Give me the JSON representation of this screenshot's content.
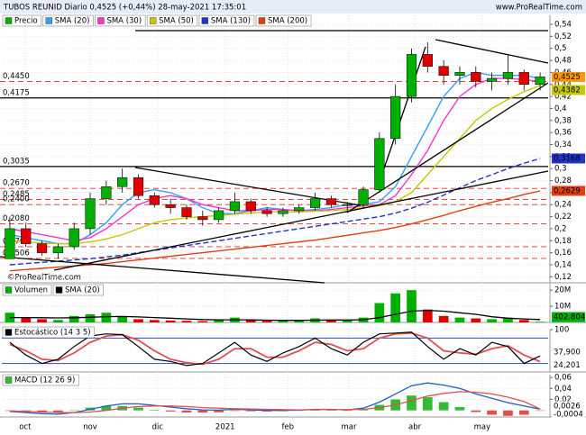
{
  "header": {
    "title": "TUBOS REUNID Diario 0,4525 (+0,44%) 28-may-2021 17:35:01",
    "site": "www.ProRealTime.com",
    "watermark": "©ProRealTime.com"
  },
  "chart_data": [
    {
      "type": "candlestick",
      "title": "Precio",
      "open": [
        0.15,
        0.2,
        0.175,
        0.16,
        0.17,
        0.2,
        0.25,
        0.27,
        0.285,
        0.255,
        0.24,
        0.235,
        0.22,
        0.215,
        0.23,
        0.245,
        0.23,
        0.225,
        0.23,
        0.235,
        0.25,
        0.24,
        0.24,
        0.265,
        0.35,
        0.42,
        0.49,
        0.47,
        0.455,
        0.46,
        0.445,
        0.45,
        0.46,
        0.44
      ],
      "high": [
        0.22,
        0.21,
        0.18,
        0.175,
        0.21,
        0.26,
        0.28,
        0.3,
        0.29,
        0.26,
        0.25,
        0.24,
        0.23,
        0.235,
        0.26,
        0.25,
        0.235,
        0.235,
        0.24,
        0.26,
        0.255,
        0.245,
        0.27,
        0.36,
        0.44,
        0.5,
        0.51,
        0.48,
        0.47,
        0.47,
        0.46,
        0.49,
        0.465,
        0.46
      ],
      "low": [
        0.15,
        0.17,
        0.155,
        0.15,
        0.165,
        0.19,
        0.24,
        0.26,
        0.25,
        0.235,
        0.225,
        0.215,
        0.205,
        0.21,
        0.225,
        0.225,
        0.22,
        0.22,
        0.225,
        0.23,
        0.235,
        0.23,
        0.235,
        0.26,
        0.34,
        0.41,
        0.46,
        0.44,
        0.44,
        0.435,
        0.43,
        0.44,
        0.43,
        0.43
      ],
      "close": [
        0.2,
        0.175,
        0.16,
        0.17,
        0.2,
        0.25,
        0.27,
        0.285,
        0.255,
        0.24,
        0.235,
        0.22,
        0.215,
        0.23,
        0.245,
        0.23,
        0.225,
        0.23,
        0.235,
        0.25,
        0.24,
        0.24,
        0.265,
        0.35,
        0.42,
        0.49,
        0.47,
        0.455,
        0.46,
        0.445,
        0.45,
        0.46,
        0.44,
        0.4525
      ],
      "last_label": "0,4525",
      "up_color": "#00b000",
      "down_color": "#e00000",
      "last_color": "#ff9800",
      "series": [
        {
          "name": "SMA (20)",
          "color": "#33a0ff",
          "values": [
            0.19,
            0.185,
            0.18,
            0.175,
            0.175,
            0.19,
            0.21,
            0.24,
            0.26,
            0.265,
            0.26,
            0.25,
            0.235,
            0.225,
            0.225,
            0.23,
            0.235,
            0.232,
            0.23,
            0.232,
            0.235,
            0.24,
            0.24,
            0.245,
            0.27,
            0.32,
            0.37,
            0.42,
            0.45,
            0.46,
            0.455,
            0.455,
            0.455,
            0.45
          ]
        },
        {
          "name": "SMA (30)",
          "color": "#ff33cc",
          "values": [
            0.2,
            0.195,
            0.19,
            0.185,
            0.18,
            0.185,
            0.2,
            0.22,
            0.24,
            0.25,
            0.255,
            0.25,
            0.24,
            0.235,
            0.23,
            0.23,
            0.232,
            0.232,
            0.23,
            0.23,
            0.232,
            0.235,
            0.238,
            0.24,
            0.255,
            0.29,
            0.33,
            0.38,
            0.42,
            0.44,
            0.45,
            0.45,
            0.448,
            0.445
          ]
        },
        {
          "name": "SMA (50)",
          "color": "#c8c800",
          "last_label": "0,4382",
          "values": [
            0.18,
            0.178,
            0.176,
            0.175,
            0.175,
            0.178,
            0.183,
            0.19,
            0.2,
            0.21,
            0.215,
            0.218,
            0.22,
            0.222,
            0.224,
            0.226,
            0.228,
            0.228,
            0.228,
            0.229,
            0.23,
            0.232,
            0.235,
            0.238,
            0.245,
            0.26,
            0.29,
            0.32,
            0.35,
            0.38,
            0.4,
            0.415,
            0.428,
            0.4382
          ]
        },
        {
          "name": "SMA (130)",
          "color": "#2233cc",
          "dashed": true,
          "last_label": "0,3168",
          "values": [
            0.14,
            0.142,
            0.144,
            0.146,
            0.148,
            0.15,
            0.153,
            0.156,
            0.16,
            0.164,
            0.168,
            0.172,
            0.176,
            0.18,
            0.184,
            0.188,
            0.192,
            0.196,
            0.2,
            0.204,
            0.208,
            0.212,
            0.216,
            0.22,
            0.226,
            0.234,
            0.244,
            0.256,
            0.268,
            0.28,
            0.29,
            0.3,
            0.309,
            0.3168
          ]
        },
        {
          "name": "SMA (200)",
          "color": "#e04010",
          "last_label": "0,2629",
          "values": [
            0.13,
            0.132,
            0.134,
            0.136,
            0.138,
            0.14,
            0.142,
            0.145,
            0.148,
            0.151,
            0.154,
            0.157,
            0.16,
            0.163,
            0.166,
            0.169,
            0.172,
            0.175,
            0.178,
            0.181,
            0.185,
            0.189,
            0.193,
            0.197,
            0.202,
            0.208,
            0.215,
            0.222,
            0.23,
            0.237,
            0.244,
            0.25,
            0.257,
            0.2629
          ]
        }
      ],
      "levels": [
        {
          "value": 0.445,
          "label": "0,4450",
          "style": "dashed"
        },
        {
          "value": 0.4175,
          "label": "0,4175",
          "style": "solid"
        },
        {
          "value": 0.3035,
          "label": "0,3035",
          "style": "solid"
        },
        {
          "value": 0.267,
          "label": "0,2670",
          "style": "dashed"
        },
        {
          "value": 0.2485,
          "label": "0,2485",
          "style": "dashed"
        },
        {
          "value": 0.24,
          "label": "0,2400",
          "style": "dashed"
        },
        {
          "value": 0.208,
          "label": "0,2080",
          "style": "dashed"
        },
        {
          "value": 0.17,
          "label": "0,1700",
          "style": "dashed"
        },
        {
          "value": 0.1506,
          "label": "0,1506",
          "style": "dashed"
        }
      ],
      "ylim": [
        0.11,
        0.555
      ],
      "yticks": [
        {
          "value": 0.12,
          "label": "0,12"
        },
        {
          "value": 0.14,
          "label": "0,14"
        },
        {
          "value": 0.16,
          "label": "0,16"
        },
        {
          "value": 0.18,
          "label": "0,18"
        },
        {
          "value": 0.2,
          "label": "0,2"
        },
        {
          "value": 0.22,
          "label": "0,22"
        },
        {
          "value": 0.24,
          "label": "0,24"
        },
        {
          "value": 0.26,
          "label": "0,26"
        },
        {
          "value": 0.28,
          "label": "0,28"
        },
        {
          "value": 0.3,
          "label": "0,3"
        },
        {
          "value": 0.32,
          "label": "0,32"
        },
        {
          "value": 0.34,
          "label": "0,34"
        },
        {
          "value": 0.36,
          "label": "0,36"
        },
        {
          "value": 0.38,
          "label": "0,38"
        },
        {
          "value": 0.4,
          "label": "0,4"
        },
        {
          "value": 0.42,
          "label": "0,42"
        },
        {
          "value": 0.44,
          "label": "0,44"
        },
        {
          "value": 0.46,
          "label": "0,46"
        },
        {
          "value": 0.48,
          "label": "0,48"
        },
        {
          "value": 0.5,
          "label": "0,5"
        },
        {
          "value": 0.52,
          "label": "0,52"
        },
        {
          "value": 0.54,
          "label": "0,54"
        }
      ],
      "xticks": [
        {
          "value": 0.95,
          "label": "oct"
        },
        {
          "value": 5.0,
          "label": "nov"
        },
        {
          "value": 9.2,
          "label": "dic"
        },
        {
          "value": 13.4,
          "label": "2021"
        },
        {
          "value": 17.3,
          "label": "feb"
        },
        {
          "value": 21.1,
          "label": "mar"
        },
        {
          "value": 25.2,
          "label": "abr"
        },
        {
          "value": 29.4,
          "label": "may"
        }
      ],
      "grid": true
    },
    {
      "type": "bar",
      "title": "Volumen",
      "values": [
        6000000,
        3000000,
        2000000,
        1500000,
        4000000,
        5000000,
        6000000,
        4000000,
        2000000,
        1500000,
        1200000,
        1000000,
        800000,
        1500000,
        3000000,
        1500000,
        1000000,
        1000000,
        1200000,
        2500000,
        1500000,
        1200000,
        3000000,
        12000000,
        18000000,
        20000000,
        8000000,
        4000000,
        3000000,
        2500000,
        2000000,
        3000000,
        1500000,
        402804
      ],
      "last_label": "402.804",
      "last_color": "#00b000",
      "series": [
        {
          "name": "SMA (20)",
          "color": "#000000",
          "values": [
            3000000,
            3000000,
            2900000,
            2800000,
            2900000,
            3200000,
            3600000,
            3700000,
            3400000,
            3000000,
            2600000,
            2200000,
            1800000,
            1600000,
            1600000,
            1600000,
            1400000,
            1300000,
            1300000,
            1400000,
            1500000,
            1500000,
            1700000,
            3000000,
            5000000,
            7000000,
            7500000,
            7000000,
            6000000,
            5000000,
            3500000,
            2600000,
            2200000,
            1800000
          ]
        }
      ],
      "ylim": [
        0,
        24000000
      ],
      "yticks": [
        {
          "value": 10000000,
          "label": "10M"
        },
        {
          "value": 20000000,
          "label": "20M"
        }
      ]
    },
    {
      "type": "line",
      "title": "Estocástico (14 3 5)",
      "series": [
        {
          "name": "%K",
          "color": "#000000",
          "last_label": "37,900",
          "values": [
            70,
            40,
            20,
            30,
            60,
            85,
            90,
            88,
            60,
            30,
            25,
            15,
            20,
            45,
            70,
            40,
            25,
            45,
            60,
            80,
            55,
            40,
            70,
            90,
            92,
            94,
            60,
            30,
            55,
            40,
            70,
            60,
            20,
            37.9
          ]
        },
        {
          "name": "%D",
          "color": "#e05050",
          "last_label": "24,201",
          "values": [
            65,
            50,
            30,
            27,
            45,
            70,
            85,
            88,
            75,
            50,
            30,
            22,
            18,
            30,
            55,
            55,
            35,
            35,
            50,
            70,
            65,
            50,
            55,
            80,
            90,
            92,
            80,
            50,
            45,
            42,
            55,
            62,
            40,
            24.201
          ]
        }
      ],
      "levels": [
        80,
        20
      ],
      "level_color": "#3344cc",
      "ylim": [
        0,
        100
      ],
      "yticks": [
        100
      ]
    },
    {
      "type": "macd",
      "title": "MACD (12 26 9)",
      "series": [
        {
          "name": "MACD",
          "color": "#1f5fbf",
          "values": [
            -0.002,
            -0.004,
            -0.006,
            -0.007,
            -0.004,
            0.002,
            0.008,
            0.012,
            0.012,
            0.009,
            0.006,
            0.003,
            0.001,
            0.0005,
            0.002,
            0.001,
            0,
            0,
            0.0005,
            0.002,
            0.002,
            0.001,
            0.004,
            0.015,
            0.03,
            0.045,
            0.05,
            0.046,
            0.04,
            0.03,
            0.022,
            0.014,
            0.008,
            0.0022
          ]
        },
        {
          "name": "Señal",
          "color": "#e05050",
          "last_label": "0,0026",
          "values": [
            -0.001,
            -0.002,
            -0.003,
            -0.004,
            -0.004,
            -0.003,
            0,
            0.004,
            0.007,
            0.008,
            0.008,
            0.007,
            0.005,
            0.004,
            0.003,
            0.0025,
            0.002,
            0.0015,
            0.001,
            0.0015,
            0.0016,
            0.0014,
            0.002,
            0.005,
            0.01,
            0.018,
            0.026,
            0.031,
            0.034,
            0.033,
            0.03,
            0.024,
            0.016,
            0.0026
          ]
        }
      ],
      "histogram": [
        -0.001,
        -0.002,
        -0.003,
        -0.003,
        0,
        0.005,
        0.008,
        0.008,
        0.005,
        0.001,
        -0.002,
        -0.004,
        -0.004,
        -0.0035,
        -0.001,
        -0.0015,
        -0.002,
        -0.0015,
        -0.0005,
        0.0005,
        0.0004,
        -0.0004,
        0.002,
        0.01,
        0.02,
        0.027,
        0.024,
        0.015,
        0.006,
        -0.003,
        -0.008,
        -0.01,
        -0.008,
        -0.0004
      ],
      "histogram_label": "-0,0004",
      "up_color": "#33bb33",
      "down_color": "#e05050",
      "ylim": [
        -0.012,
        0.065
      ],
      "yticks": [
        {
          "value": 0.02,
          "label": "0,02"
        },
        {
          "value": 0.04,
          "label": "0,04"
        },
        {
          "value": 0.06,
          "label": "0,06"
        }
      ]
    }
  ]
}
